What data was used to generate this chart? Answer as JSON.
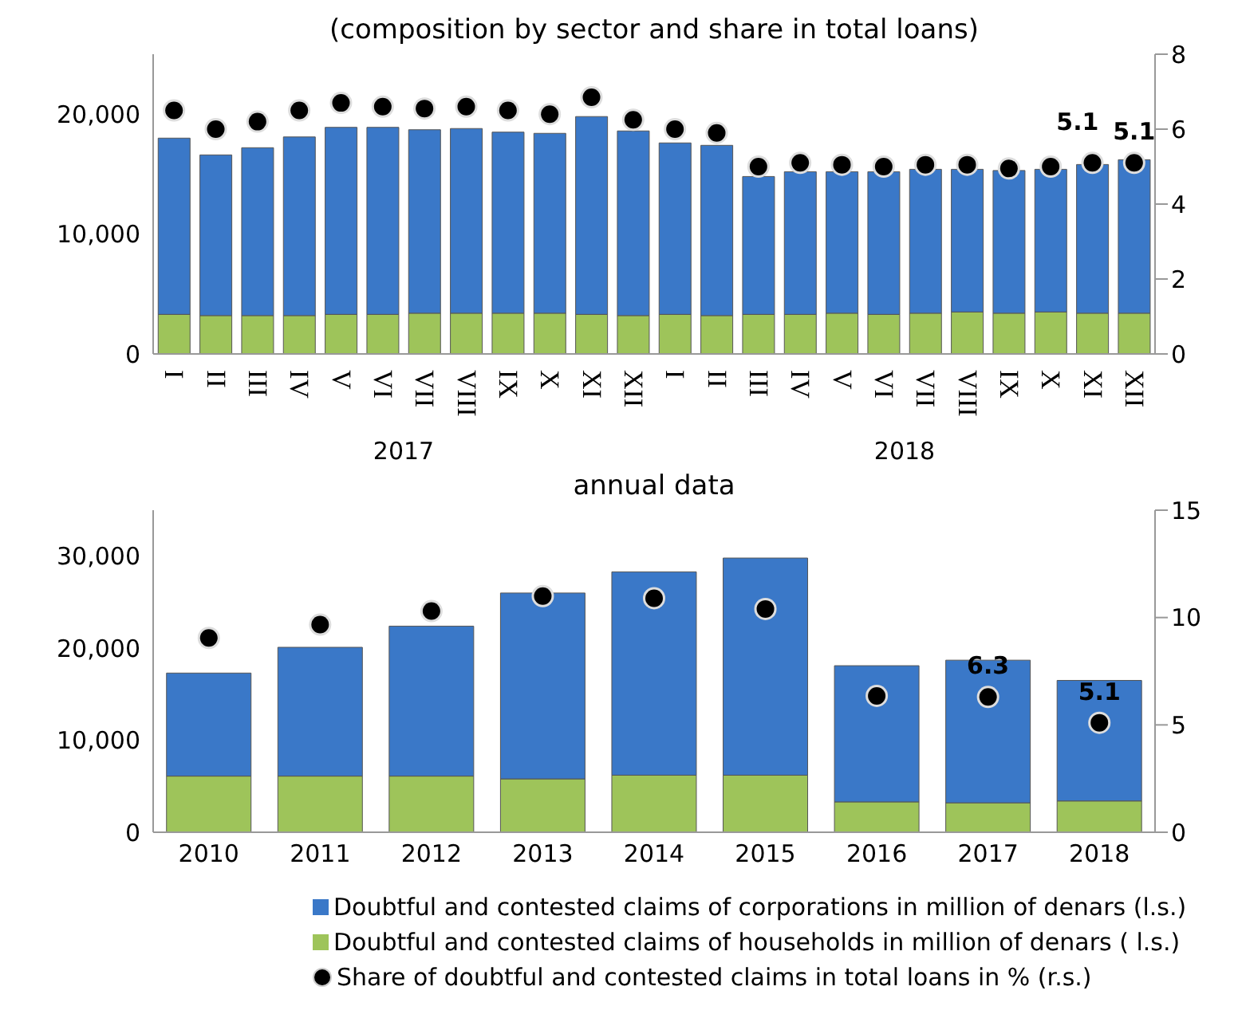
{
  "chart_data": [
    {
      "type": "bar",
      "title": "(composition by sector and share in total loans)",
      "stacked": true,
      "marker": "circle",
      "categories": [
        "I",
        "II",
        "III",
        "IV",
        "V",
        "VI",
        "VII",
        "VIII",
        "IX",
        "X",
        "XI",
        "XII",
        "I",
        "II",
        "III",
        "IV",
        "V",
        "VI",
        "VII",
        "VIII",
        "IX",
        "X",
        "XI",
        "XII"
      ],
      "annotations": [
        "2017",
        "2018"
      ],
      "ylim": [
        0,
        25000
      ],
      "yticks": [
        0,
        {
          "value": 10000,
          "label": "10,000"
        },
        {
          "value": 20000,
          "label": "20,000"
        }
      ],
      "y2lim": [
        0,
        8
      ],
      "y2ticks": [
        0,
        2,
        4,
        6,
        8
      ],
      "series": [
        {
          "color": "#9ec45a",
          "values": [
            3300,
            3200,
            3200,
            3200,
            3300,
            3300,
            3400,
            3400,
            3400,
            3400,
            3300,
            3200,
            3300,
            3200,
            3300,
            3300,
            3400,
            3300,
            3400,
            3500,
            3400,
            3500,
            3400,
            3400
          ]
        },
        {
          "color": "#3a78c8",
          "values": [
            14700,
            13400,
            14000,
            14900,
            15600,
            15600,
            15300,
            15400,
            15100,
            15000,
            16500,
            15400,
            14300,
            14200,
            11500,
            11900,
            11800,
            11900,
            12000,
            11900,
            11900,
            11900,
            12400,
            12800
          ]
        },
        {
          "type": "scatter",
          "axis": "y2",
          "color": "#000000",
          "values": [
            6.5,
            6.0,
            6.2,
            6.5,
            6.7,
            6.6,
            6.55,
            6.6,
            6.5,
            6.4,
            6.85,
            6.25,
            6.0,
            5.9,
            5.0,
            5.1,
            5.05,
            5.0,
            5.05,
            5.05,
            4.95,
            5.0,
            5.1,
            5.1
          ],
          "value_labels": [
            null,
            null,
            null,
            null,
            null,
            null,
            null,
            null,
            null,
            null,
            null,
            null,
            null,
            null,
            null,
            null,
            null,
            null,
            null,
            null,
            null,
            null,
            "5.1",
            "5.1"
          ]
        }
      ]
    },
    {
      "type": "bar",
      "title": "annual data",
      "stacked": true,
      "marker": "circle",
      "legend": "bottom",
      "categories": [
        "2010",
        "2011",
        "2012",
        "2013",
        "2014",
        "2015",
        "2016",
        "2017",
        "2018"
      ],
      "ylim": [
        0,
        35000
      ],
      "yticks": [
        0,
        {
          "value": 10000,
          "label": "10,000"
        },
        {
          "value": 20000,
          "label": "20,000"
        },
        {
          "value": 30000,
          "label": "30,000"
        }
      ],
      "y2lim": [
        0,
        15
      ],
      "y2ticks": [
        0,
        5,
        10,
        15
      ],
      "series": [
        {
          "name": "Doubtful and contested claims of households in million of denars ( l.s.)",
          "color": "#9ec45a",
          "values": [
            6100,
            6100,
            6100,
            5800,
            6200,
            6200,
            3300,
            3200,
            3400
          ]
        },
        {
          "name": "Doubtful and contested claims of corporations in million of denars (l.s.)",
          "color": "#3a78c8",
          "values": [
            11200,
            14000,
            16300,
            20200,
            22100,
            23600,
            14800,
            15500,
            13100
          ]
        },
        {
          "type": "scatter",
          "axis": "y2",
          "name": "Share of doubtful and contested claims in total loans in % (r.s.)",
          "color": "#000000",
          "values": [
            9.05,
            9.67,
            10.3,
            11.0,
            10.9,
            10.4,
            6.35,
            6.3,
            5.1
          ],
          "value_labels": [
            null,
            null,
            null,
            null,
            null,
            null,
            null,
            "6.3",
            "5.1"
          ]
        }
      ]
    }
  ]
}
